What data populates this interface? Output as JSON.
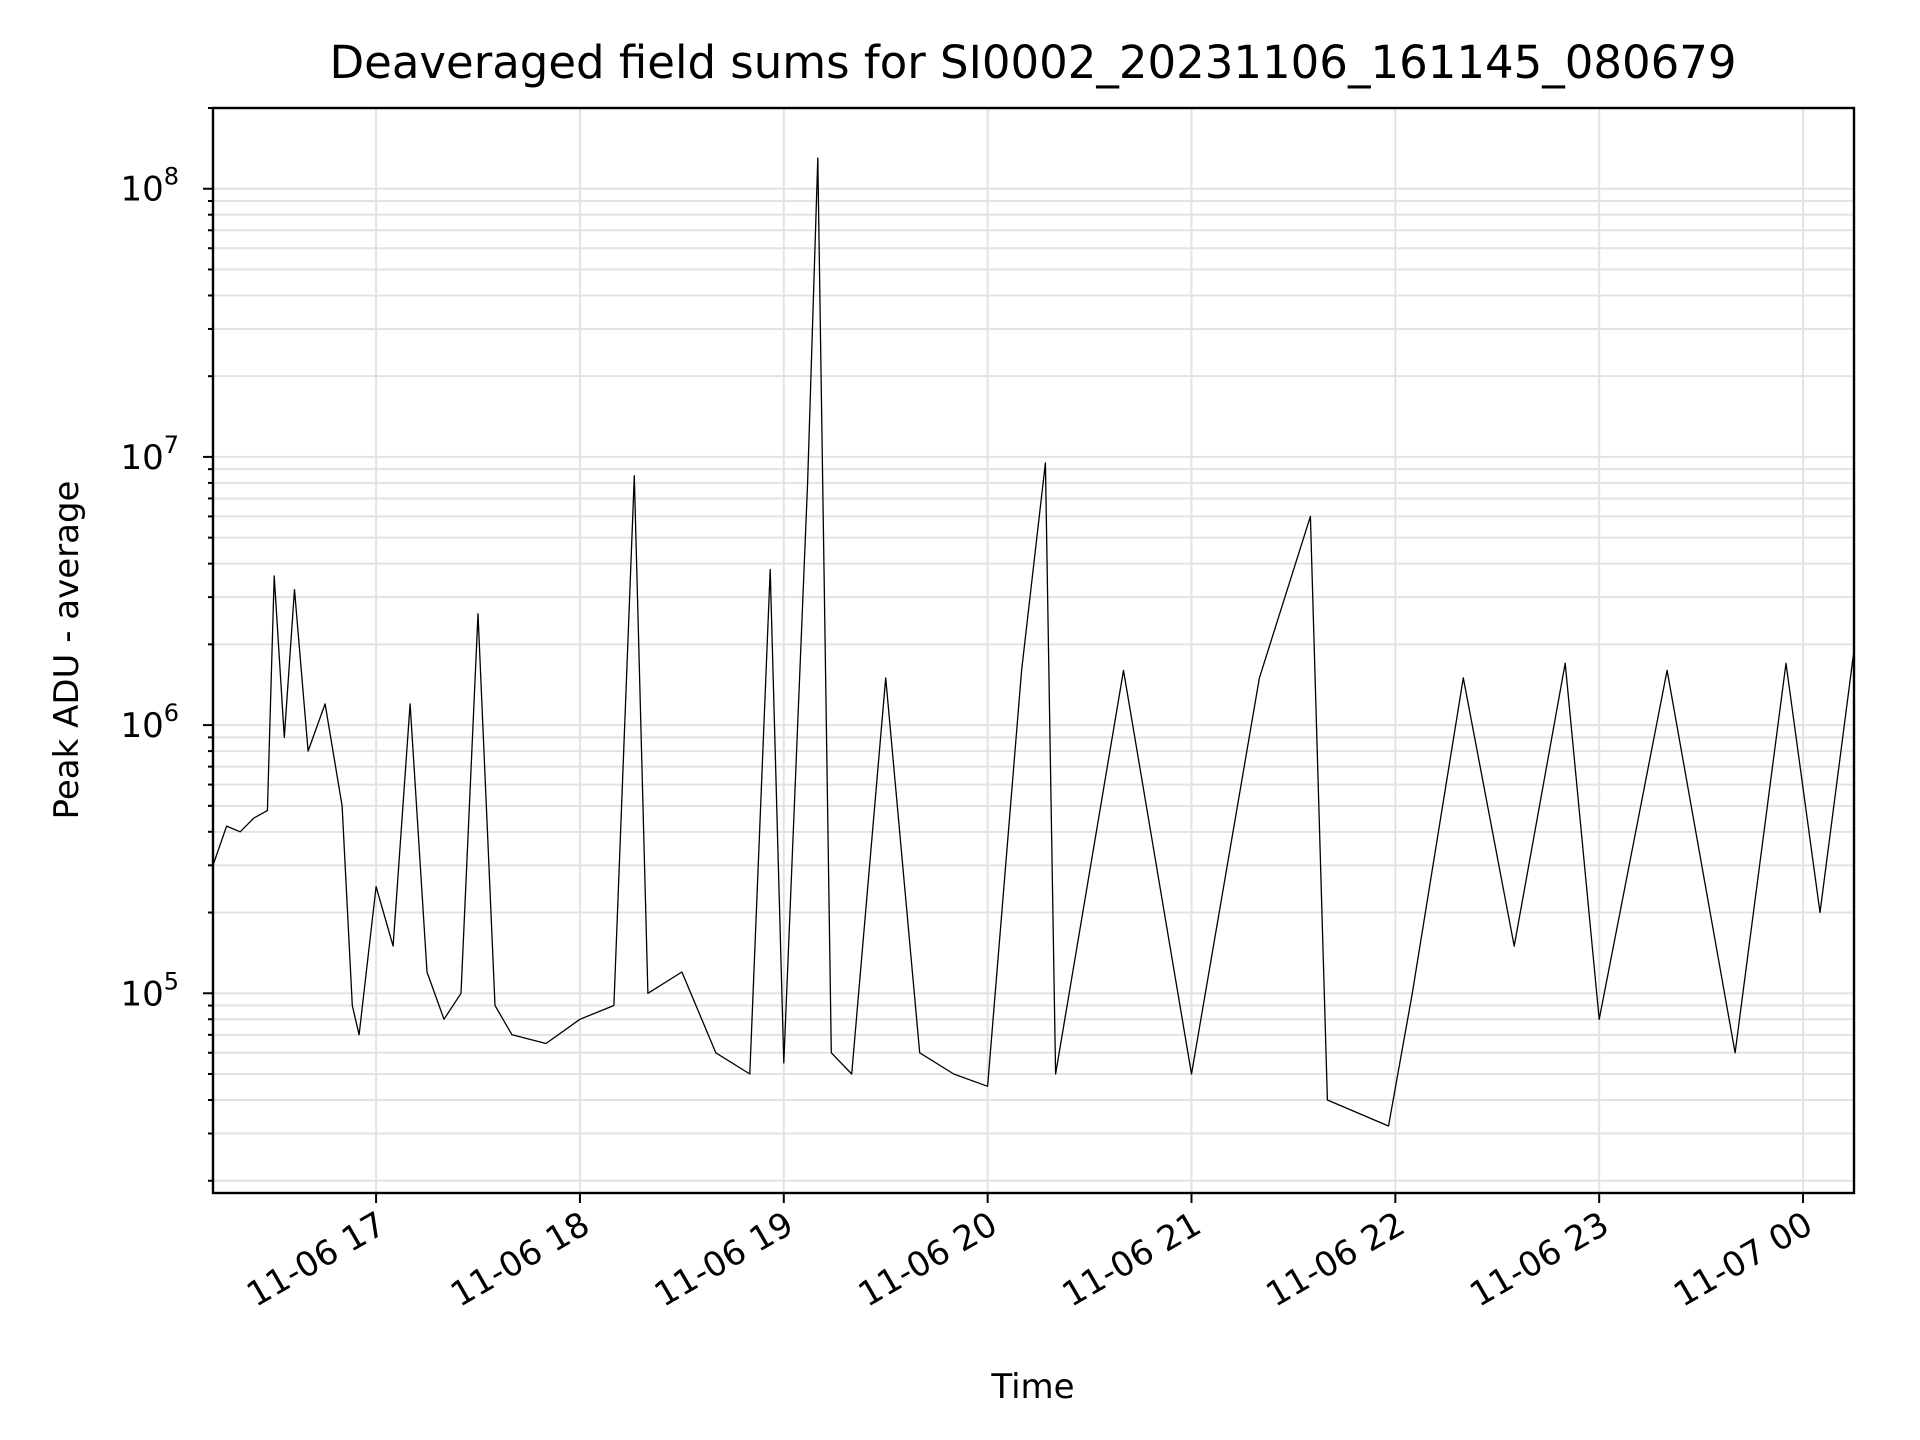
{
  "chart_data": {
    "type": "line",
    "title": "Deaveraged field sums for SI0002_20231106_161145_080679",
    "xlabel": "Time",
    "ylabel": "Peak ADU - average",
    "xscale": "time",
    "yscale": "log",
    "xlim": [
      "2023-11-06 16:12",
      "2023-11-07 00:15"
    ],
    "ylim": [
      18000,
      200000000
    ],
    "grid": true,
    "line_color": "#000000",
    "x_ticks": [
      {
        "value": "2023-11-06 17:00",
        "label": "11-06 17"
      },
      {
        "value": "2023-11-06 18:00",
        "label": "11-06 18"
      },
      {
        "value": "2023-11-06 19:00",
        "label": "11-06 19"
      },
      {
        "value": "2023-11-06 20:00",
        "label": "11-06 20"
      },
      {
        "value": "2023-11-06 21:00",
        "label": "11-06 21"
      },
      {
        "value": "2023-11-06 22:00",
        "label": "11-06 22"
      },
      {
        "value": "2023-11-06 23:00",
        "label": "11-06 23"
      },
      {
        "value": "2023-11-07 00:00",
        "label": "11-07 00"
      }
    ],
    "y_ticks": [
      {
        "value": 100000,
        "base": "10",
        "exp": "5"
      },
      {
        "value": 1000000,
        "base": "10",
        "exp": "6"
      },
      {
        "value": 10000000,
        "base": "10",
        "exp": "7"
      },
      {
        "value": 100000000,
        "base": "10",
        "exp": "8"
      }
    ],
    "points": [
      [
        "2023-11-06 16:12",
        300000
      ],
      [
        "2023-11-06 16:16",
        420000
      ],
      [
        "2023-11-06 16:20",
        400000
      ],
      [
        "2023-11-06 16:24",
        450000
      ],
      [
        "2023-11-06 16:28",
        480000
      ],
      [
        "2023-11-06 16:30",
        3600000
      ],
      [
        "2023-11-06 16:33",
        900000
      ],
      [
        "2023-11-06 16:36",
        3200000
      ],
      [
        "2023-11-06 16:40",
        800000
      ],
      [
        "2023-11-06 16:45",
        1200000
      ],
      [
        "2023-11-06 16:50",
        500000
      ],
      [
        "2023-11-06 16:53",
        90000
      ],
      [
        "2023-11-06 16:55",
        70000
      ],
      [
        "2023-11-06 17:00",
        250000
      ],
      [
        "2023-11-06 17:05",
        150000
      ],
      [
        "2023-11-06 17:10",
        1200000
      ],
      [
        "2023-11-06 17:15",
        120000
      ],
      [
        "2023-11-06 17:20",
        80000
      ],
      [
        "2023-11-06 17:25",
        100000
      ],
      [
        "2023-11-06 17:30",
        2600000
      ],
      [
        "2023-11-06 17:35",
        90000
      ],
      [
        "2023-11-06 17:40",
        70000
      ],
      [
        "2023-11-06 17:50",
        65000
      ],
      [
        "2023-11-06 18:00",
        80000
      ],
      [
        "2023-11-06 18:10",
        90000
      ],
      [
        "2023-11-06 18:16",
        8500000
      ],
      [
        "2023-11-06 18:20",
        100000
      ],
      [
        "2023-11-06 18:30",
        120000
      ],
      [
        "2023-11-06 18:40",
        60000
      ],
      [
        "2023-11-06 18:50",
        50000
      ],
      [
        "2023-11-06 18:56",
        3800000
      ],
      [
        "2023-11-06 19:00",
        55000
      ],
      [
        "2023-11-06 19:07",
        8000000
      ],
      [
        "2023-11-06 19:10",
        130000000
      ],
      [
        "2023-11-06 19:14",
        60000
      ],
      [
        "2023-11-06 19:20",
        50000
      ],
      [
        "2023-11-06 19:30",
        1500000
      ],
      [
        "2023-11-06 19:40",
        60000
      ],
      [
        "2023-11-06 19:50",
        50000
      ],
      [
        "2023-11-06 20:00",
        45000
      ],
      [
        "2023-11-06 20:10",
        1600000
      ],
      [
        "2023-11-06 20:17",
        9500000
      ],
      [
        "2023-11-06 20:20",
        50000
      ],
      [
        "2023-11-06 20:40",
        1600000
      ],
      [
        "2023-11-06 21:00",
        50000
      ],
      [
        "2023-11-06 21:20",
        1500000
      ],
      [
        "2023-11-06 21:35",
        6000000
      ],
      [
        "2023-11-06 21:40",
        40000
      ],
      [
        "2023-11-06 21:58",
        32000
      ],
      [
        "2023-11-06 22:05",
        100000
      ],
      [
        "2023-11-06 22:20",
        1500000
      ],
      [
        "2023-11-06 22:35",
        150000
      ],
      [
        "2023-11-06 22:50",
        1700000
      ],
      [
        "2023-11-06 23:00",
        80000
      ],
      [
        "2023-11-06 23:20",
        1600000
      ],
      [
        "2023-11-06 23:40",
        60000
      ],
      [
        "2023-11-06 23:55",
        1700000
      ],
      [
        "2023-11-07 00:05",
        200000
      ],
      [
        "2023-11-07 00:15",
        1900000
      ]
    ]
  }
}
